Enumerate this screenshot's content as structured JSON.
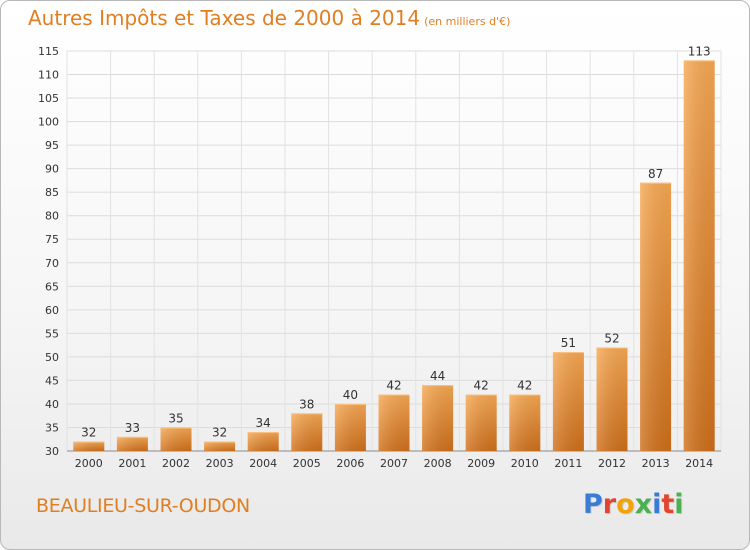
{
  "header": {
    "title": "Autres Impôts et Taxes de 2000 à 2014",
    "unit": "(en milliers d'€)"
  },
  "footer": {
    "commune": "BEAULIEU-SUR-OUDON",
    "logo": "Proxiti"
  },
  "colors": {
    "accent": "#e07f22",
    "bar_light": "#f7a54f",
    "bar_dark": "#d2731c",
    "grid": "#d8d8d8"
  },
  "chart_data": {
    "type": "bar",
    "title": "Autres Impôts et Taxes de 2000 à 2014",
    "subtitle": "(en milliers d'€)",
    "categories": [
      "2000",
      "2001",
      "2002",
      "2003",
      "2004",
      "2005",
      "2006",
      "2007",
      "2008",
      "2009",
      "2010",
      "2011",
      "2012",
      "2013",
      "2014"
    ],
    "values": [
      32,
      33,
      35,
      32,
      34,
      38,
      40,
      42,
      44,
      42,
      42,
      51,
      52,
      87,
      113
    ],
    "ylim": [
      30,
      115
    ],
    "yticks": [
      30,
      35,
      40,
      45,
      50,
      55,
      60,
      65,
      70,
      75,
      80,
      85,
      90,
      95,
      100,
      105,
      110,
      115
    ],
    "grid": true,
    "xlabel": "",
    "ylabel": ""
  }
}
